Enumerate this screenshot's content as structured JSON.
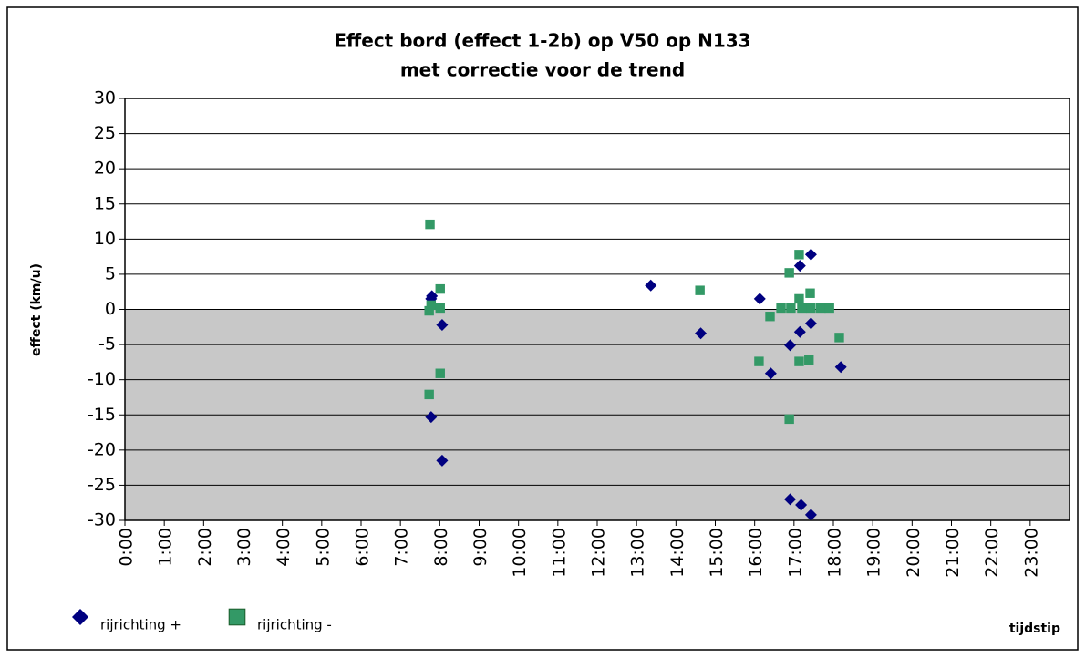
{
  "chart_data": {
    "type": "scatter",
    "title": [
      "Effect bord (effect 1-2b) op V50 op N133",
      "met correctie voor de trend"
    ],
    "xlabel": "tijdstip",
    "ylabel": "effect (km/u)",
    "xlim": [
      0,
      24
    ],
    "ylim": [
      -30,
      30
    ],
    "yticks": [
      -30,
      -25,
      -20,
      -15,
      -10,
      -5,
      0,
      5,
      10,
      15,
      20,
      25,
      30
    ],
    "xticks": [
      {
        "value": 0,
        "label": "0:00"
      },
      {
        "value": 1,
        "label": "1:00"
      },
      {
        "value": 2,
        "label": "2:00"
      },
      {
        "value": 3,
        "label": "3:00"
      },
      {
        "value": 4,
        "label": "4:00"
      },
      {
        "value": 5,
        "label": "5:00"
      },
      {
        "value": 6,
        "label": "6:00"
      },
      {
        "value": 7,
        "label": "7:00"
      },
      {
        "value": 8,
        "label": "8:00"
      },
      {
        "value": 9,
        "label": "9:00"
      },
      {
        "value": 10,
        "label": "10:00"
      },
      {
        "value": 11,
        "label": "11:00"
      },
      {
        "value": 12,
        "label": "12:00"
      },
      {
        "value": 13,
        "label": "13:00"
      },
      {
        "value": 14,
        "label": "14:00"
      },
      {
        "value": 15,
        "label": "15:00"
      },
      {
        "value": 16,
        "label": "16:00"
      },
      {
        "value": 17,
        "label": "17:00"
      },
      {
        "value": 18,
        "label": "18:00"
      },
      {
        "value": 19,
        "label": "19:00"
      },
      {
        "value": 20,
        "label": "20:00"
      },
      {
        "value": 21,
        "label": "21:00"
      },
      {
        "value": 22,
        "label": "22:00"
      },
      {
        "value": 23,
        "label": "23:00"
      }
    ],
    "grid": true,
    "series": [
      {
        "name": "rijrichting +",
        "color": "#000080",
        "marker": "diamond",
        "x": [
          7.8,
          7.78,
          8.06,
          7.78,
          8.06,
          13.36,
          14.63,
          16.13,
          16.41,
          16.9,
          17.15,
          17.43,
          17.15,
          17.43,
          18.19,
          16.9,
          17.18,
          17.43
        ],
        "values": [
          1.9,
          1.5,
          -2.2,
          -15.3,
          -21.5,
          3.4,
          -3.4,
          1.5,
          -9.1,
          -5.1,
          6.2,
          7.8,
          -3.2,
          -2.0,
          -8.2,
          -27.0,
          -27.8,
          -29.2
        ]
      },
      {
        "name": "rijrichting -",
        "color": "#339966",
        "marker": "square",
        "x": [
          7.75,
          7.73,
          7.78,
          8.01,
          8.01,
          8.01,
          7.73,
          14.61,
          16.11,
          16.39,
          16.67,
          16.92,
          17.2,
          17.43,
          17.68,
          17.9,
          16.88,
          17.13,
          17.13,
          17.41,
          17.13,
          17.38,
          16.88,
          18.15
        ],
        "values": [
          12.1,
          -0.2,
          0.6,
          2.9,
          0.2,
          -9.1,
          -12.1,
          2.7,
          -7.4,
          -1.0,
          0.2,
          0.2,
          0.2,
          0.2,
          0.2,
          0.2,
          5.2,
          7.8,
          1.5,
          2.3,
          -7.4,
          -7.2,
          -15.6,
          -4.0
        ]
      }
    ]
  }
}
